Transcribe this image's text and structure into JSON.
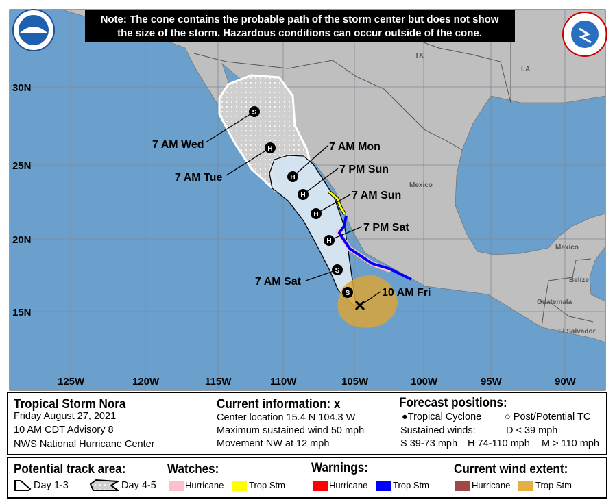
{
  "note": [
    "Note: The cone contains the probable path of the storm center but does not show",
    "the size of the storm. Hazardous conditions can occur outside of the cone."
  ],
  "logos": {
    "left": "NOAA",
    "right": "NATIONAL WEATHER SERVICE"
  },
  "axes": {
    "lat": [
      "30N",
      "25N",
      "20N",
      "15N"
    ],
    "lon": [
      "125W",
      "120W",
      "115W",
      "110W",
      "105W",
      "100W",
      "95W",
      "90W"
    ]
  },
  "places": {
    "tx": "TX",
    "la": "LA",
    "mexico1": "Mexico",
    "mexico2": "Mexico",
    "belize": "Belize",
    "guatemala": "Guatemala",
    "el_salvador": "El Salvador"
  },
  "track": [
    {
      "time": "10 AM Fri",
      "symbol": "X"
    },
    {
      "time": "",
      "symbol": "S"
    },
    {
      "time": "7 AM Sat",
      "symbol": "S"
    },
    {
      "time": "7 PM Sat",
      "symbol": "H"
    },
    {
      "time": "7 AM Sun",
      "symbol": "H"
    },
    {
      "time": "7 PM Sun",
      "symbol": "H"
    },
    {
      "time": "7 AM Mon",
      "symbol": "H"
    },
    {
      "time": "7 AM Tue",
      "symbol": "H"
    },
    {
      "time": "7 AM Wed",
      "symbol": "S"
    }
  ],
  "colors": {
    "ocean": "#6b9fcc",
    "land": "#bfbfbf",
    "cone": "#dce8f2",
    "hurricane_watch": "#ffc0cb",
    "ts_watch": "#ffff00",
    "hurricane_warning": "#ff0000",
    "ts_warning": "#0000ff",
    "hurricane_wind": "#a04848",
    "ts_wind": "#e6b040"
  },
  "info": {
    "storm": "Tropical Storm Nora",
    "date": "Friday August 27, 2021",
    "advisory": "10 AM CDT Advisory 8",
    "center": "NWS National Hurricane Center",
    "current_title": "Current information:",
    "current_mark": "x",
    "location": "Center location 15.4 N 104.3 W",
    "wind": "Maximum sustained wind 50 mph",
    "movement": "Movement NW at 12 mph",
    "forecast_title": "Forecast positions:",
    "tc": "Tropical Cyclone",
    "ptc": "Post/Potential TC",
    "sustained": "Sustained winds:",
    "d": "D < 39 mph",
    "s": "S 39-73 mph",
    "hh": "H 74-110 mph",
    "m": "M > 110 mph"
  },
  "legend": {
    "track_title": "Potential track area:",
    "day13": "Day 1-3",
    "day45": "Day 4-5",
    "watches_title": "Watches:",
    "warnings_title": "Warnings:",
    "wind_title": "Current wind extent:",
    "hurricane": "Hurricane",
    "trop_stm": "Trop Stm"
  }
}
